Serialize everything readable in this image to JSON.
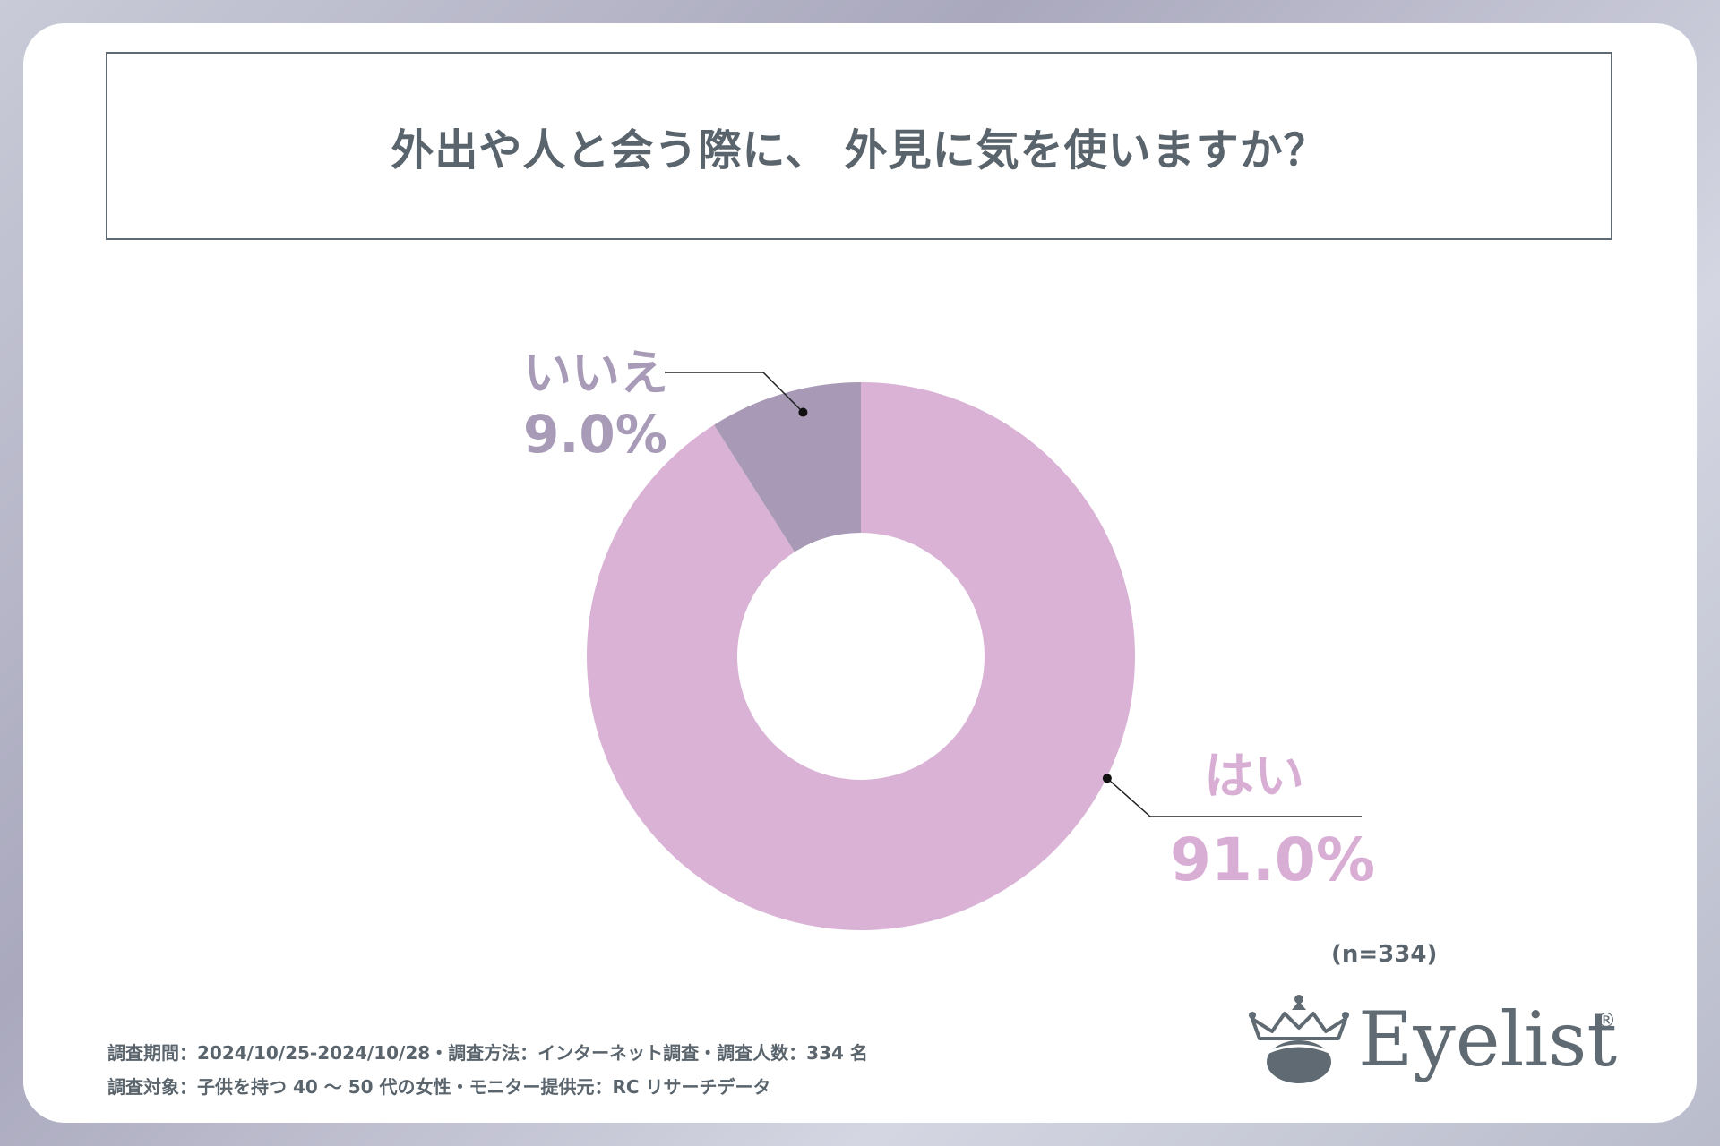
{
  "title": "外出や人と会う際に、 外見に気を使いますか？",
  "chart_data": {
    "type": "pie",
    "title": "外出や人と会う際に、 外見に気を使いますか？",
    "categories": [
      "はい",
      "いいえ"
    ],
    "values": [
      91.0,
      9.0
    ],
    "value_labels": [
      "91.0%",
      "9.0%"
    ],
    "colors": [
      "#d9b2d5",
      "#a89ab6"
    ],
    "donut": true,
    "start": "top, clockwise",
    "sample": "(n=334)"
  },
  "footnotes": {
    "line1": "調査期間：2024/10/25-2024/10/28・調査方法：インターネット調査・調査人数：334 名",
    "line2": "調査対象：子供を持つ 40 ～ 50 代の女性・モニター提供元：RC リサーチデータ"
  },
  "logo": {
    "word": "Eyelist",
    "mark": "®",
    "icon": "crown-eye-icon"
  }
}
